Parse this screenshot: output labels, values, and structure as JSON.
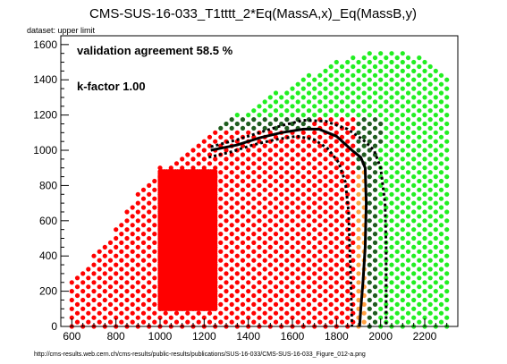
{
  "chart_data": {
    "type": "scatter",
    "title": "CMS-SUS-16-033_T1tttt_2*Eq(MassA,x)_Eq(MassB,y)",
    "subtitle": "dataset: upper limit",
    "footer": "http://cms-results.web.cern.ch/cms-results/public-results/publications/SUS-16-033/CMS-SUS-16-033_Figure_012-a.png",
    "annotations": [
      "validation agreement 58.5 %",
      "k-factor 1.00"
    ],
    "xlim": [
      550,
      2350
    ],
    "ylim": [
      0,
      1650
    ],
    "xticks": [
      600,
      800,
      1000,
      1200,
      1400,
      1600,
      1800,
      2000,
      2200
    ],
    "yticks": [
      0,
      200,
      400,
      600,
      800,
      1000,
      1200,
      1400,
      1600
    ],
    "colors": {
      "red": "#ff0000",
      "orange": "#ffa040",
      "darkgreen": "#1f5c1f",
      "green": "#22ee22",
      "curve": "#000000"
    },
    "curves": {
      "solid": [
        [
          1230,
          1000
        ],
        [
          1350,
          1030
        ],
        [
          1450,
          1070
        ],
        [
          1550,
          1100
        ],
        [
          1650,
          1120
        ],
        [
          1720,
          1120
        ],
        [
          1800,
          1080
        ],
        [
          1870,
          1000
        ],
        [
          1910,
          960
        ],
        [
          1930,
          900
        ],
        [
          1935,
          700
        ],
        [
          1930,
          450
        ],
        [
          1920,
          250
        ],
        [
          1910,
          100
        ],
        [
          1905,
          0
        ]
      ],
      "dotted_outer": [
        [
          1230,
          1020
        ],
        [
          1350,
          1060
        ],
        [
          1450,
          1100
        ],
        [
          1550,
          1140
        ],
        [
          1650,
          1170
        ],
        [
          1750,
          1165
        ],
        [
          1850,
          1120
        ],
        [
          1920,
          1060
        ],
        [
          1970,
          1000
        ],
        [
          2000,
          900
        ],
        [
          2020,
          700
        ],
        [
          2025,
          450
        ],
        [
          2025,
          200
        ],
        [
          2025,
          0
        ]
      ],
      "dotted_inner": [
        [
          1220,
          960
        ],
        [
          1320,
          990
        ],
        [
          1420,
          1030
        ],
        [
          1520,
          1060
        ],
        [
          1620,
          1080
        ],
        [
          1700,
          1060
        ],
        [
          1760,
          1010
        ],
        [
          1810,
          930
        ],
        [
          1840,
          820
        ],
        [
          1855,
          650
        ],
        [
          1860,
          450
        ],
        [
          1865,
          250
        ],
        [
          1870,
          0
        ]
      ]
    }
  }
}
